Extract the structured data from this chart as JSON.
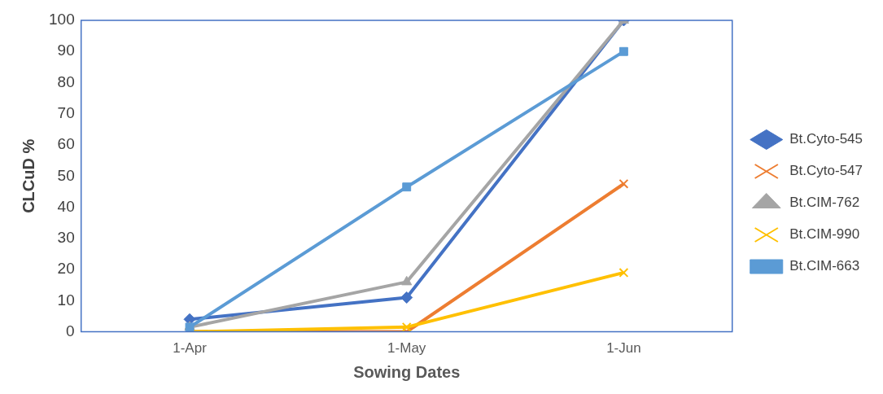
{
  "chart_data": {
    "type": "line",
    "xlabel": "Sowing Dates",
    "ylabel": "CLCuD %",
    "categories": [
      "1-Apr",
      "1-May",
      "1-Jun"
    ],
    "series": [
      {
        "name": "Bt.Cyto-545",
        "color": "#4472c4",
        "marker": "diamond",
        "values": [
          4,
          11,
          100
        ]
      },
      {
        "name": "Bt.Cyto-547",
        "color": "#ed7d31",
        "marker": "cross",
        "values": [
          0,
          0,
          47.5
        ]
      },
      {
        "name": "Bt.CIM-762",
        "color": "#a5a5a5",
        "marker": "triangle",
        "values": [
          1.5,
          16,
          100
        ]
      },
      {
        "name": "Bt.CIM-990",
        "color": "#ffc000",
        "marker": "cross",
        "values": [
          0,
          1.5,
          19
        ]
      },
      {
        "name": "Bt.CIM-663",
        "color": "#5b9bd5",
        "marker": "square",
        "values": [
          1.5,
          46.5,
          90
        ]
      }
    ],
    "ylim": [
      0,
      100
    ],
    "yticks": [
      0,
      10,
      20,
      30,
      40,
      50,
      60,
      70,
      80,
      90,
      100
    ],
    "grid": false,
    "legend": "right",
    "line_style": "solid"
  }
}
